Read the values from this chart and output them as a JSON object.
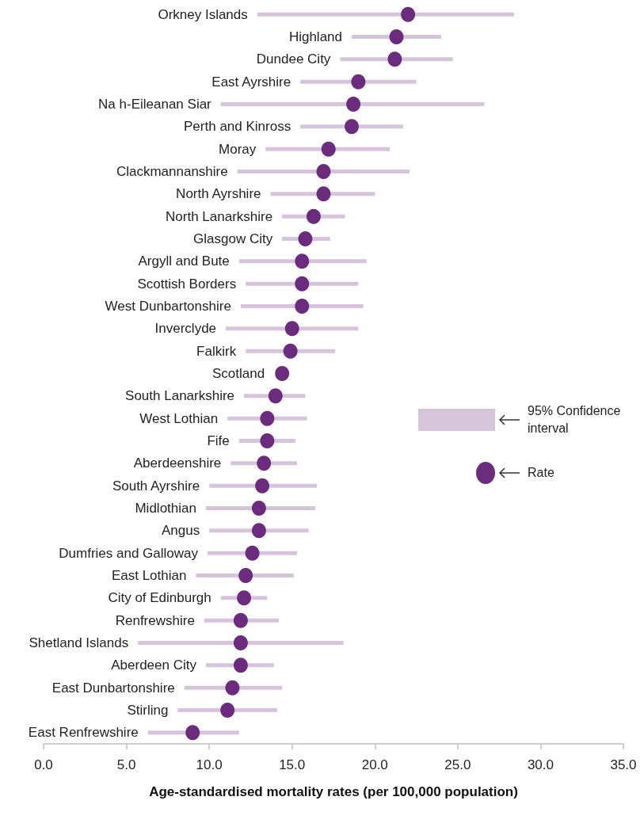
{
  "chart_data": {
    "type": "scatter",
    "orientation": "horizontal",
    "xlabel": "Age-standardised mortality rates (per 100,000 population)",
    "categories": [
      "Orkney Islands",
      "Highland",
      "Dundee City",
      "East Ayrshire",
      "Na h-Eileanan Siar",
      "Perth and Kinross",
      "Moray",
      "Clackmannanshire",
      "North Ayrshire",
      "North Lanarkshire",
      "Glasgow City",
      "Argyll and Bute",
      "Scottish Borders",
      "West Dunbartonshire",
      "Inverclyde",
      "Falkirk",
      "Scotland",
      "South Lanarkshire",
      "West Lothian",
      "Fife",
      "Aberdeenshire",
      "South Ayrshire",
      "Midlothian",
      "Angus",
      "Dumfries and Galloway",
      "East Lothian",
      "City of Edinburgh",
      "Renfrewshire",
      "Shetland Islands",
      "Aberdeen City",
      "East Dunbartonshire",
      "Stirling",
      "East Renfrewshire"
    ],
    "series": [
      {
        "name": "Rate",
        "color": "#6b2c7e",
        "values": [
          22.0,
          21.3,
          21.2,
          19.0,
          18.7,
          18.6,
          17.2,
          16.9,
          16.9,
          16.3,
          15.8,
          15.6,
          15.6,
          15.6,
          15.0,
          14.9,
          14.4,
          14.0,
          13.5,
          13.5,
          13.3,
          13.2,
          13.0,
          13.0,
          12.6,
          12.2,
          12.1,
          11.9,
          11.9,
          11.9,
          11.4,
          11.1,
          9.0
        ],
        "errors": [
          [
            12.9,
            28.4
          ],
          [
            18.6,
            24.0
          ],
          [
            17.9,
            24.7
          ],
          [
            15.5,
            22.5
          ],
          [
            10.7,
            26.6
          ],
          [
            15.5,
            21.7
          ],
          [
            13.4,
            20.9
          ],
          [
            11.7,
            22.1
          ],
          [
            13.7,
            20.0
          ],
          [
            14.4,
            18.2
          ],
          [
            14.4,
            17.3
          ],
          [
            11.8,
            19.5
          ],
          [
            12.2,
            19.0
          ],
          [
            11.9,
            19.3
          ],
          [
            11.0,
            19.0
          ],
          [
            12.2,
            17.6
          ],
          null,
          [
            12.1,
            15.8
          ],
          [
            11.1,
            15.9
          ],
          [
            11.8,
            15.2
          ],
          [
            11.3,
            15.3
          ],
          [
            10.0,
            16.5
          ],
          [
            9.8,
            16.4
          ],
          [
            10.0,
            16.0
          ],
          [
            9.9,
            15.3
          ],
          [
            9.2,
            15.1
          ],
          [
            10.7,
            13.5
          ],
          [
            9.7,
            14.2
          ],
          [
            5.7,
            18.1
          ],
          [
            9.8,
            13.9
          ],
          [
            8.5,
            14.4
          ],
          [
            8.1,
            14.1
          ],
          [
            6.3,
            11.8
          ]
        ]
      }
    ],
    "annotations": [
      "95% Confidence interval"
    ],
    "xlim": [
      0,
      35
    ],
    "xticks": [
      {
        "value": 0,
        "label": "0.0"
      },
      {
        "value": 5,
        "label": "5.0"
      },
      {
        "value": 10,
        "label": "10.0"
      },
      {
        "value": 15,
        "label": "15.0"
      },
      {
        "value": 20,
        "label": "20.0"
      },
      {
        "value": 25,
        "label": "25.0"
      },
      {
        "value": 30,
        "label": "30.0"
      },
      {
        "value": 35,
        "label": "35.0"
      }
    ],
    "marker": "circle",
    "legend": "right",
    "grid": false
  }
}
